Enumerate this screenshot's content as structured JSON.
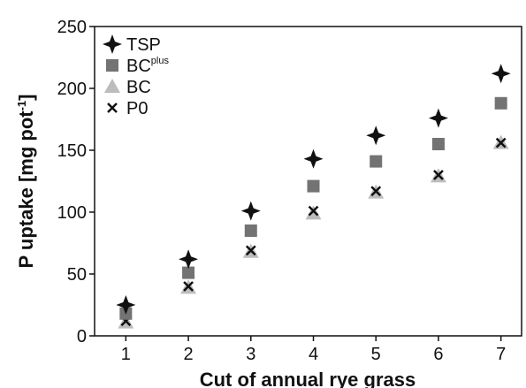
{
  "chart_data": {
    "type": "scatter",
    "x_label": "Cut of annual rye grass",
    "y_label": {
      "text": "P uptake [mg pot",
      "sup": "-1",
      "end": "]"
    },
    "x": [
      1,
      2,
      3,
      4,
      5,
      6,
      7
    ],
    "series": [
      {
        "name": "TSP",
        "marker": "star",
        "color": "#111111",
        "values": [
          25,
          62,
          101,
          143,
          162,
          176,
          212
        ]
      },
      {
        "name": "BC",
        "name_sup": "plus",
        "marker": "square",
        "color": "#737373",
        "values": [
          18,
          51,
          85,
          121,
          141,
          155,
          188
        ]
      },
      {
        "name": "BC",
        "marker": "triangle",
        "color": "#bdbdbd",
        "values": [
          11,
          39,
          68,
          99,
          116,
          129,
          156
        ]
      },
      {
        "name": "P0",
        "marker": "cross",
        "color": "#111111",
        "values": [
          12,
          40,
          69,
          101,
          117,
          130,
          156
        ]
      }
    ],
    "xlim": [
      0.5,
      7.33
    ],
    "xticks": [
      1,
      2,
      3,
      4,
      5,
      6,
      7
    ],
    "ylim": [
      0,
      250
    ],
    "yticks": [
      0,
      50,
      100,
      150,
      200,
      250
    ],
    "legend": "upper-left",
    "grid": false
  }
}
